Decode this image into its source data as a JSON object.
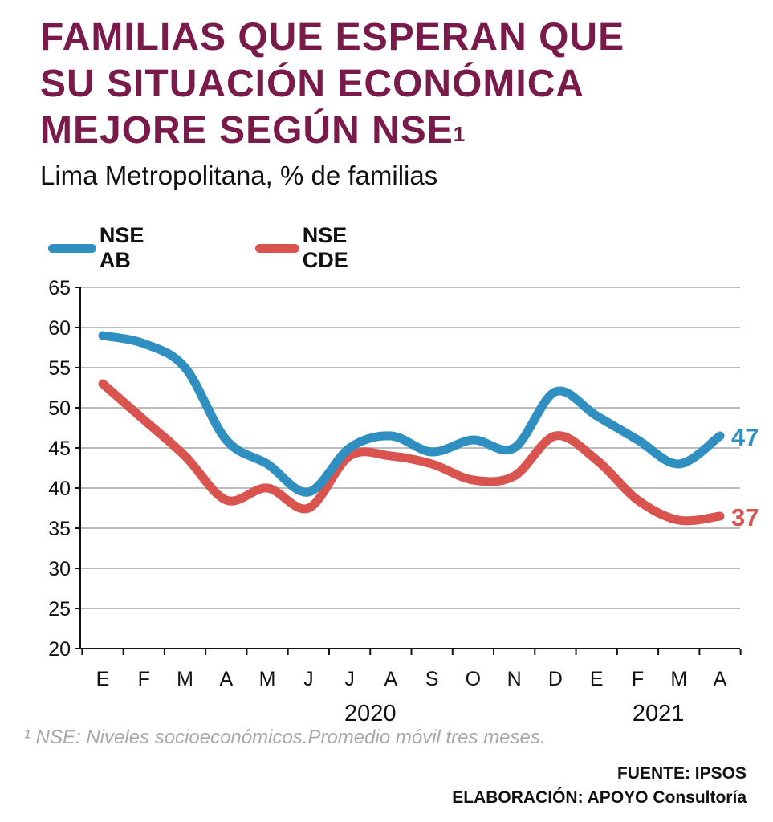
{
  "header": {
    "title_line1": "FAMILIAS QUE ESPERAN QUE",
    "title_line2": "SU SITUACIÓN ECONÓMICA",
    "title_line3": "MEJORE SEGÚN NSE",
    "title_sup": "1",
    "subtitle": "Lima Metropolitana, % de familias"
  },
  "colors": {
    "title": "#7a1a4a",
    "ab": "#2e8fc0",
    "cde": "#d9534f",
    "grid": "#bdbdbd",
    "axis": "#111111"
  },
  "chart_data": {
    "type": "line",
    "categories": [
      "E",
      "F",
      "M",
      "A",
      "M",
      "J",
      "J",
      "A",
      "S",
      "O",
      "N",
      "D",
      "E",
      "F",
      "M",
      "A"
    ],
    "year_labels": [
      {
        "label": "2020",
        "center_index": 6.5
      },
      {
        "label": "2021",
        "center_index": 13.5
      }
    ],
    "ylim": [
      20,
      65
    ],
    "yticks": [
      20,
      25,
      30,
      35,
      40,
      45,
      50,
      55,
      60,
      65
    ],
    "grid": true,
    "legend_position": "top-left",
    "series": [
      {
        "name": "NSE AB",
        "color": "#2e8fc0",
        "end_label": "47",
        "values": [
          59,
          58,
          55,
          46,
          43,
          39.5,
          45,
          46.5,
          44.5,
          46,
          45,
          52,
          49,
          46,
          43,
          46.5
        ]
      },
      {
        "name": "NSE CDE",
        "color": "#d9534f",
        "end_label": "37",
        "values": [
          53,
          48.5,
          44,
          38.5,
          40,
          37.5,
          44,
          44,
          43,
          41,
          41.5,
          46.5,
          43.5,
          38.5,
          36,
          36.5
        ]
      }
    ]
  },
  "footer": {
    "footnote": "¹ NSE: Niveles socioeconómicos.Promedio móvil tres meses.",
    "source": "FUENTE: IPSOS",
    "credit": "ELABORACIÓN: APOYO Consultoría"
  }
}
